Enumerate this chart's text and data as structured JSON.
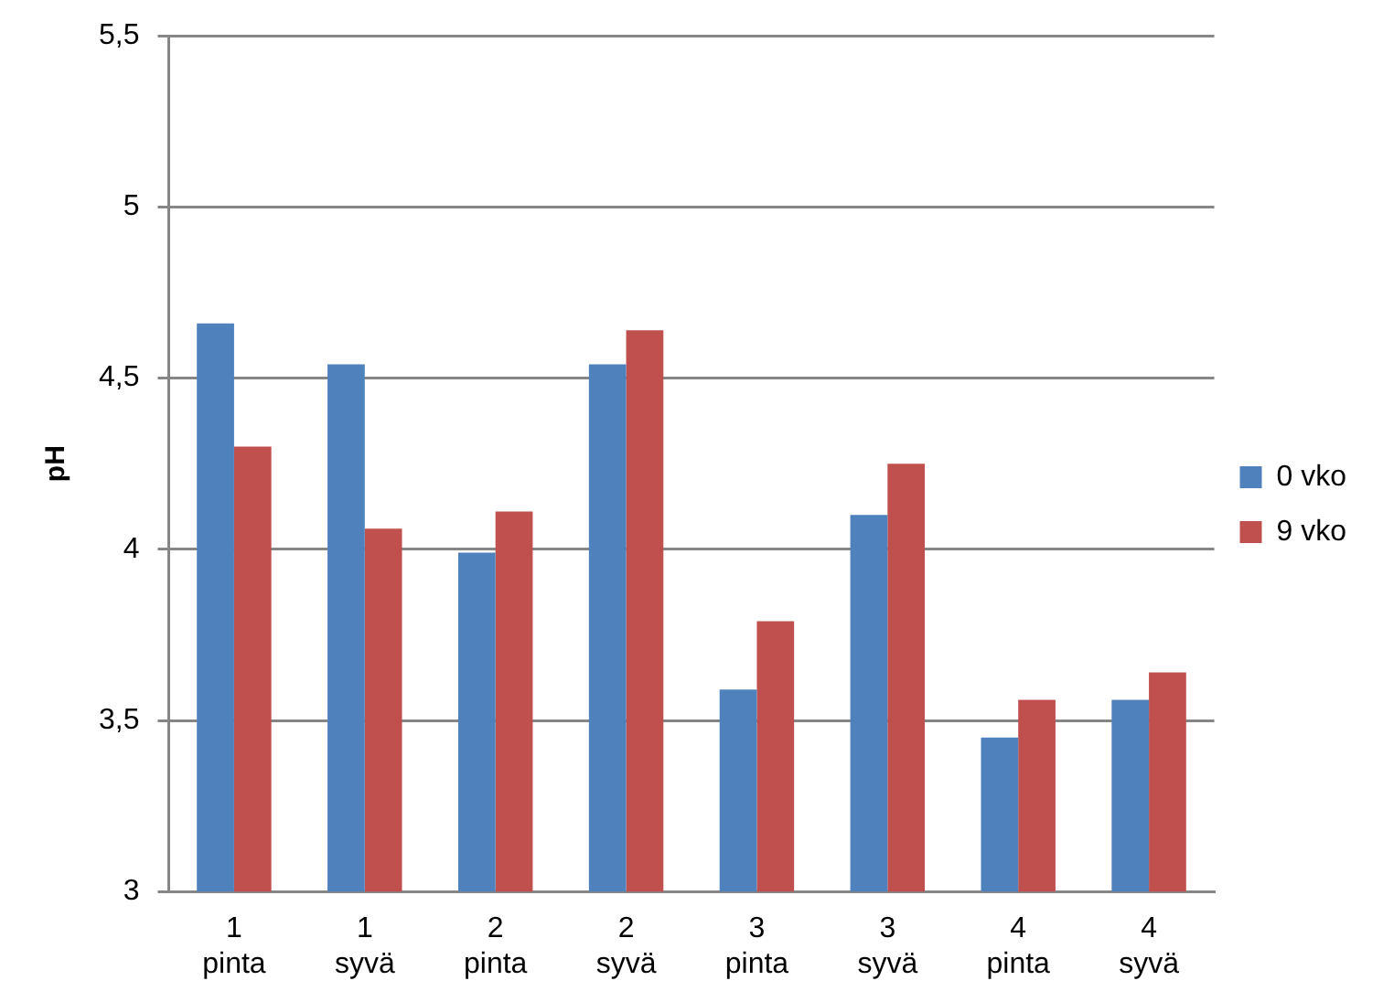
{
  "chart_data": {
    "type": "bar",
    "ylabel": "pH",
    "categories": [
      "1 pinta",
      "1 syvä",
      "2 pinta",
      "2 syvä",
      "3 pinta",
      "3 syvä",
      "4 pinta",
      "4 syvä"
    ],
    "series": [
      {
        "name": "0 vko",
        "color": "#4f81bd",
        "values": [
          4.66,
          4.54,
          3.99,
          4.54,
          3.59,
          4.1,
          3.45,
          3.56
        ]
      },
      {
        "name": "9 vko",
        "color": "#c0504d",
        "values": [
          4.3,
          4.06,
          4.11,
          4.64,
          3.79,
          4.25,
          3.56,
          3.64
        ]
      }
    ],
    "ylim": [
      3,
      5.5
    ],
    "yticks": [
      3,
      {
        "value": 3.5,
        "label": "3,5"
      },
      4,
      {
        "value": 4.5,
        "label": "4,5"
      },
      5,
      {
        "value": 5.5,
        "label": "5,5"
      }
    ],
    "grid": "y",
    "legend": "right"
  }
}
